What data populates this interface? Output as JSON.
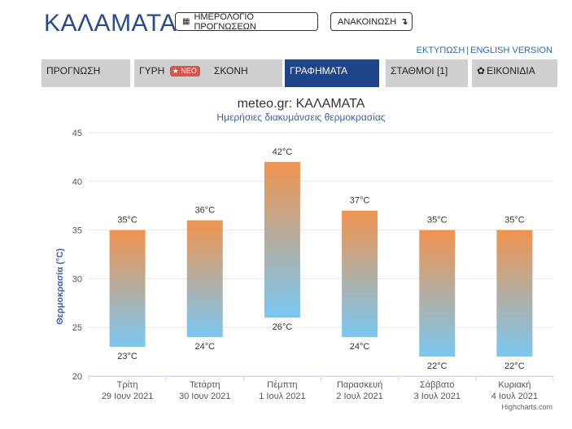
{
  "header": {
    "city": "ΚΑΛΑΜΑΤΑ",
    "calendar_button": "ΗΜΕΡΟΛΟΓΙΟ ΠΡΟΓΝΩΣΕΩΝ",
    "calendar_icon": "calendar-icon",
    "announce_button": "ΑΝΑΚΟΙΝΩΣΗ",
    "announce_icon": "arrow-down-icon"
  },
  "links": {
    "print": "ΕΚΤΥΠΩΣΗ",
    "separator": "|",
    "english": "ENGLISH VERSION"
  },
  "tabs": [
    {
      "label": "ΠΡΟΓΝΩΣΗ"
    },
    {
      "label": "ΓΥΡΗ",
      "badge": "ΝΕΟ",
      "badge_icon": "star-icon"
    },
    {
      "label": "ΣΚΟΝΗ"
    },
    {
      "label": "ΓΡΑΦΗΜΑΤΑ",
      "active": true
    },
    {
      "label": "ΣΤΑΘΜΟΙ [1]"
    },
    {
      "label": "ΕΙΚΟΝΙΔΙΑ",
      "icon": "gear-icon"
    }
  ],
  "colors": {
    "brand": "#1f4489",
    "tab_inactive": "#cfcfcf",
    "badge": "#d9534f",
    "bar_top": "#f0934f",
    "bar_bottom": "#7ac7f2",
    "subtitle": "#3b62a8"
  },
  "chart_data": {
    "type": "bar",
    "subtype": "range",
    "title": "meteo.gr: ΚΑΛΑΜΑΤΑ",
    "subtitle": "Ημερήσιες διακυμάνσεις θερμοκρασίας",
    "ylabel": "Θερμοκρασία (°C)",
    "ylim": [
      20,
      45
    ],
    "yticks": [
      "20",
      "25",
      "30",
      "35",
      "40",
      "45"
    ],
    "grid": true,
    "categories": [
      {
        "day": "Τρίτη",
        "date": "29 Ιουν 2021"
      },
      {
        "day": "Τετάρτη",
        "date": "30 Ιουν 2021"
      },
      {
        "day": "Πέμπτη",
        "date": "1 Ιουλ 2021"
      },
      {
        "day": "Παρασκευή",
        "date": "2 Ιουλ 2021"
      },
      {
        "day": "Σάββατο",
        "date": "3 Ιουλ 2021"
      },
      {
        "day": "Κυριακή",
        "date": "4 Ιουλ 2021"
      }
    ],
    "high": [
      35,
      36,
      42,
      37,
      35,
      35
    ],
    "low": [
      23,
      24,
      26,
      24,
      22,
      22
    ],
    "high_labels": [
      "35°C",
      "36°C",
      "42°C",
      "37°C",
      "35°C",
      "35°C"
    ],
    "low_labels": [
      "23°C",
      "24°C",
      "26°C",
      "24°C",
      "22°C",
      "22°C"
    ],
    "credits": "Highcharts.com"
  }
}
